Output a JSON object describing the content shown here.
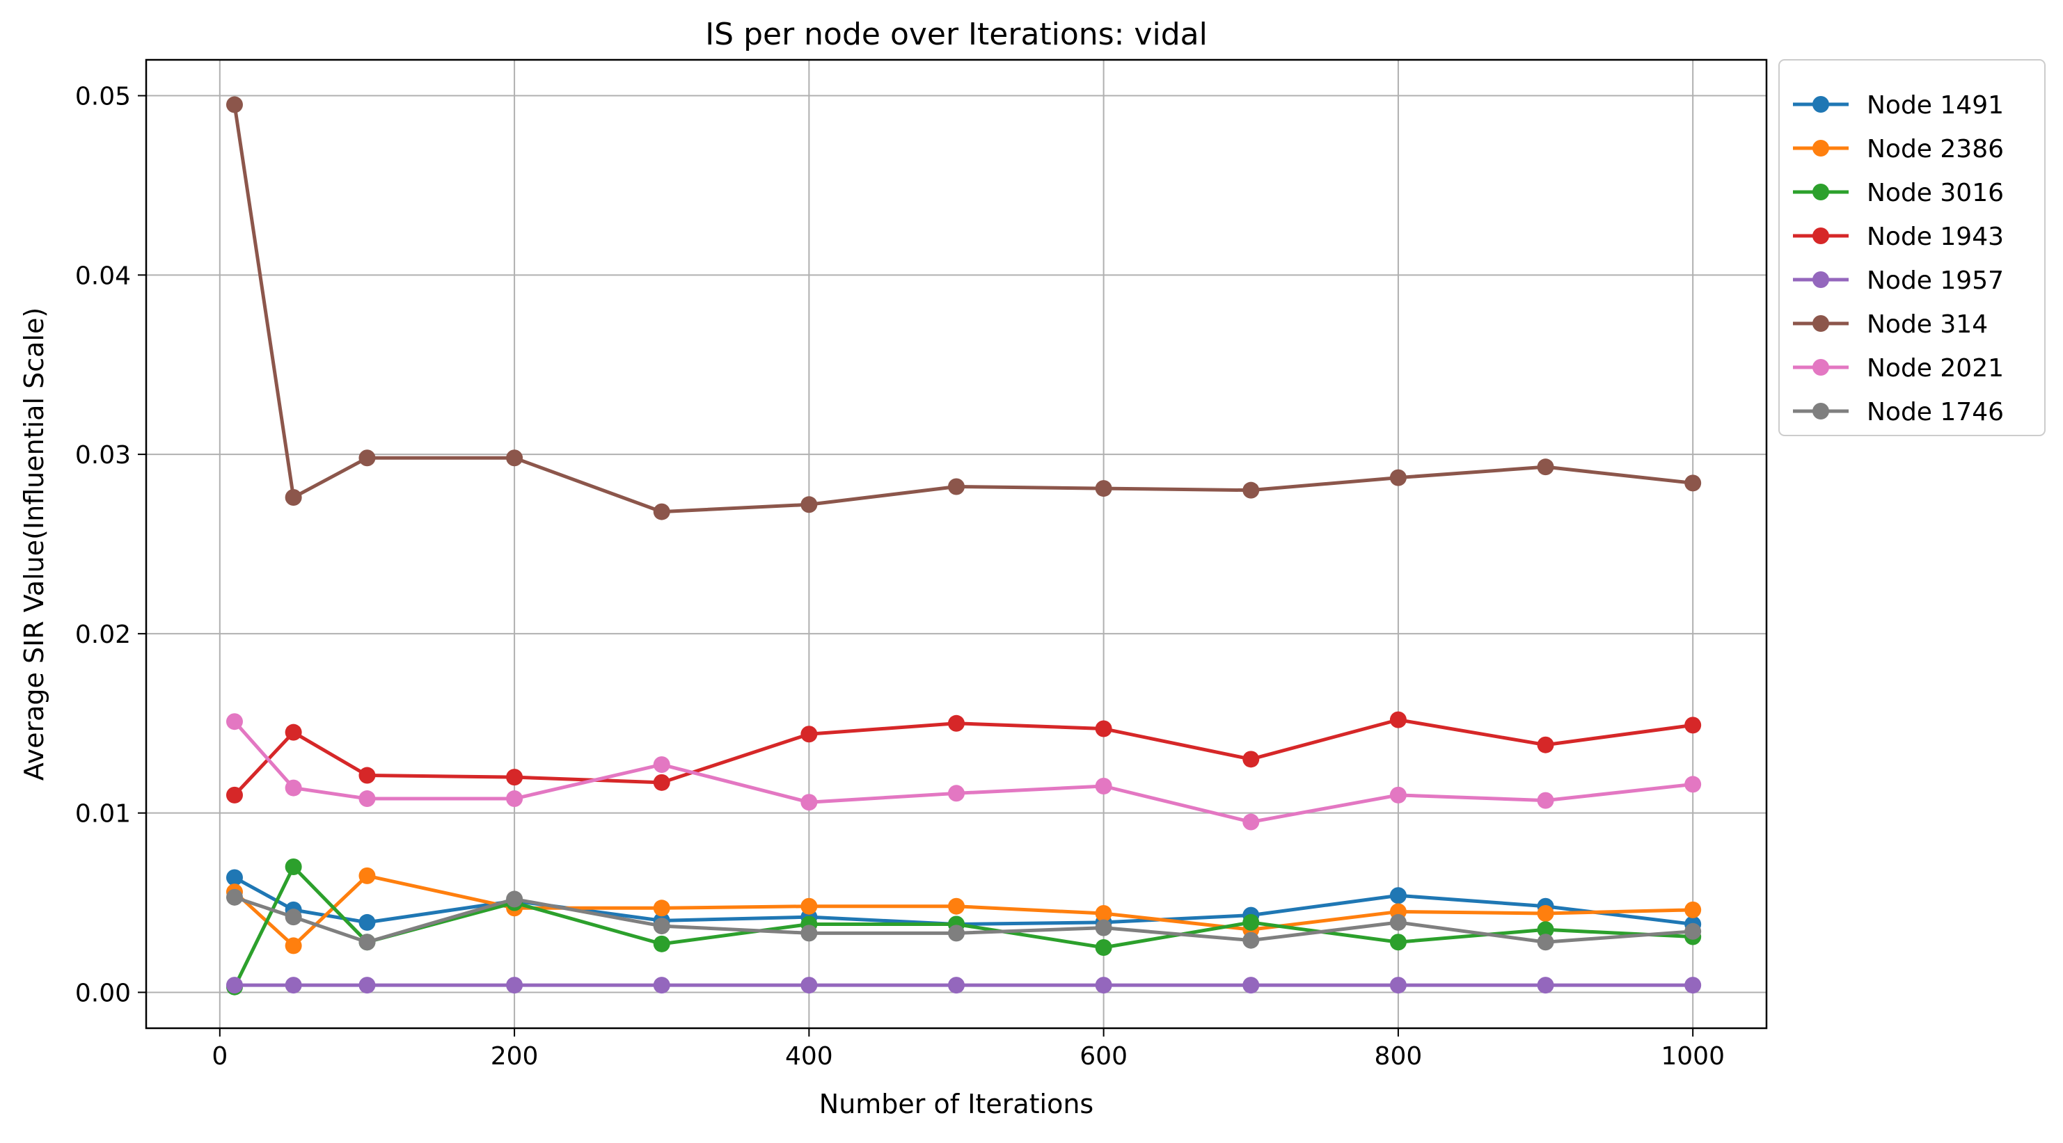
{
  "chart_data": {
    "type": "line",
    "title": "IS per node over Iterations: vidal",
    "xlabel": "Number of Iterations",
    "ylabel": "Average SIR Value(Influential Scale)",
    "xlim": [
      -50,
      1050
    ],
    "ylim": [
      -0.002,
      0.052
    ],
    "xticks": [
      0,
      200,
      400,
      600,
      800,
      1000
    ],
    "xtick_labels": [
      "0",
      "200",
      "400",
      "600",
      "800",
      "1000"
    ],
    "yticks": [
      0.0,
      0.01,
      0.02,
      0.03,
      0.04,
      0.05
    ],
    "ytick_labels": [
      "0.00",
      "0.01",
      "0.02",
      "0.03",
      "0.04",
      "0.05"
    ],
    "grid": true,
    "legend_position": "outside right, top",
    "x": [
      10,
      50,
      100,
      200,
      300,
      400,
      500,
      600,
      700,
      800,
      900,
      1000
    ],
    "series": [
      {
        "name": "Node 1491",
        "color": "#1f77b4",
        "values": [
          0.0064,
          0.0046,
          0.0039,
          0.0051,
          0.004,
          0.0042,
          0.0038,
          0.0039,
          0.0043,
          0.0054,
          0.0048,
          0.0038
        ]
      },
      {
        "name": "Node 2386",
        "color": "#ff7f0e",
        "values": [
          0.0056,
          0.0026,
          0.0065,
          0.0047,
          0.0047,
          0.0048,
          0.0048,
          0.0044,
          0.0035,
          0.0045,
          0.0044,
          0.0046
        ]
      },
      {
        "name": "Node 3016",
        "color": "#2ca02c",
        "values": [
          0.0003,
          0.007,
          0.0028,
          0.005,
          0.0027,
          0.0038,
          0.0038,
          0.0025,
          0.0039,
          0.0028,
          0.0035,
          0.0031
        ]
      },
      {
        "name": "Node 1943",
        "color": "#d62728",
        "values": [
          0.011,
          0.0145,
          0.0121,
          0.012,
          0.0117,
          0.0144,
          0.015,
          0.0147,
          0.013,
          0.0152,
          0.0138,
          0.0149
        ]
      },
      {
        "name": "Node 1957",
        "color": "#9467bd",
        "values": [
          0.0004,
          0.0004,
          0.0004,
          0.0004,
          0.0004,
          0.0004,
          0.0004,
          0.0004,
          0.0004,
          0.0004,
          0.0004,
          0.0004
        ]
      },
      {
        "name": "Node 314",
        "color": "#8c564b",
        "values": [
          0.0495,
          0.0276,
          0.0298,
          0.0298,
          0.0268,
          0.0272,
          0.0282,
          0.0281,
          0.028,
          0.0287,
          0.0293,
          0.0284
        ]
      },
      {
        "name": "Node 2021",
        "color": "#e377c2",
        "values": [
          0.0151,
          0.0114,
          0.0108,
          0.0108,
          0.0127,
          0.0106,
          0.0111,
          0.0115,
          0.0095,
          0.011,
          0.0107,
          0.0116
        ]
      },
      {
        "name": "Node 1746",
        "color": "#7f7f7f",
        "values": [
          0.0053,
          0.0042,
          0.0028,
          0.0052,
          0.0037,
          0.0033,
          0.0033,
          0.0036,
          0.0029,
          0.0039,
          0.0028,
          0.0034
        ]
      }
    ]
  }
}
